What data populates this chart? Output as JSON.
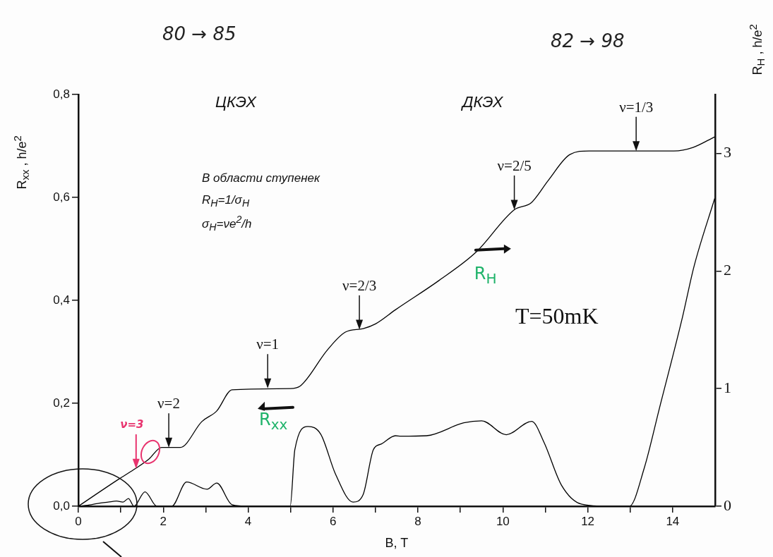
{
  "chart_data": {
    "type": "line",
    "xlabel": "B, T",
    "ylabel": "R$_{xx}$ , h/e$^{2}$",
    "y2label": "R$_{H}$ , h/e$^{2}$",
    "xlim": [
      0,
      15
    ],
    "xticks": [
      0,
      {
        "value": 1,
        "label": null
      },
      2,
      {
        "value": 3,
        "label": null
      },
      4,
      {
        "value": 5,
        "label": null
      },
      6,
      {
        "value": 7,
        "label": null
      },
      8,
      {
        "value": 9,
        "label": null
      },
      10,
      {
        "value": 11,
        "label": null
      },
      12,
      {
        "value": 13,
        "label": null
      },
      14
    ],
    "ylim": [
      0,
      0.8
    ],
    "yticks": [
      {
        "value": 0,
        "label": "0,0"
      },
      {
        "value": 0.2,
        "label": "0,2"
      },
      {
        "value": 0.4,
        "label": "0,4"
      },
      {
        "value": 0.6,
        "label": "0,6"
      },
      {
        "value": 0.8,
        "label": "0,8"
      }
    ],
    "y2lim": [
      0,
      3.5
    ],
    "y2ticks": [
      0,
      1,
      2,
      3
    ],
    "marker": "none",
    "legend": false,
    "series": [
      {
        "name": "R$_{xx}$",
        "color": "#000000",
        "x": [
          0,
          0.3,
          0.5,
          0.7,
          0.9,
          1.05,
          1.18,
          1.31,
          1.57,
          1.85,
          2.2,
          2.55,
          3.03,
          3.26,
          3.62,
          4.0,
          4.99,
          5.1,
          5.41,
          5.71,
          6.06,
          6.47,
          6.71,
          6.95,
          7.14,
          7.47,
          7.6,
          8.2,
          9.08,
          9.5,
          10.08,
          10.68,
          10.97,
          11.38,
          11.86,
          12.5,
          12.98,
          13.33,
          13.69,
          14.23,
          14.5,
          14.99
        ],
        "values": [
          0,
          0.003,
          0.006,
          0.008,
          0.01,
          0.008,
          0.015,
          0,
          0.028,
          0,
          0,
          0.047,
          0.033,
          0.045,
          0.003,
          0,
          0,
          0.11,
          0.155,
          0.14,
          0.062,
          0.008,
          0.023,
          0.11,
          0.121,
          0.137,
          0.136,
          0.137,
          0.162,
          0.166,
          0.139,
          0.165,
          0.124,
          0.041,
          0.004,
          0,
          0,
          0.074,
          0.191,
          0.367,
          0.465,
          0.598
        ]
      },
      {
        "name": "R$_{H}$",
        "color": "#000000",
        "axis": "y2",
        "x": [
          0,
          0.95,
          1.3,
          1.66,
          1.96,
          2.4,
          2.91,
          3.26,
          3.62,
          4.99,
          5.22,
          5.87,
          6.29,
          6.71,
          7.0,
          7.47,
          8.5,
          9.37,
          10.27,
          10.67,
          11.07,
          11.58,
          12.03,
          14.03,
          14.48,
          14.99
        ],
        "values": [
          0,
          0.23,
          0.31,
          0.4,
          0.5,
          0.5,
          0.72,
          0.81,
          0.99,
          1.0,
          1.02,
          1.33,
          1.48,
          1.51,
          1.55,
          1.67,
          1.92,
          2.16,
          2.52,
          2.58,
          2.77,
          2.99,
          3.02,
          3.02,
          3.05,
          3.14
        ]
      }
    ],
    "annotations": [
      "80 → 85",
      "82 → 98",
      "ЦКЭХ",
      "ДКЭХ",
      "В области ступенек",
      "R$_{H}$=1/σ$_{H}$",
      "σ$_{H}$=νe$^{2}$/h",
      "T=50mK",
      {
        "text": "ν=3",
        "x": 1.36,
        "y": 0.073
      },
      {
        "text": "ν=2",
        "x": 2.13,
        "y": 0.114
      },
      {
        "text": "ν=1",
        "x": 4.46,
        "y": 0.229
      },
      {
        "text": "ν=2/3",
        "x": 6.62,
        "y": 0.343
      },
      {
        "text": "ν=2/5",
        "x": 10.27,
        "y": 0.576
      },
      {
        "text": "ν=1/3",
        "x": 13.14,
        "y": 0.69
      }
    ]
  }
}
